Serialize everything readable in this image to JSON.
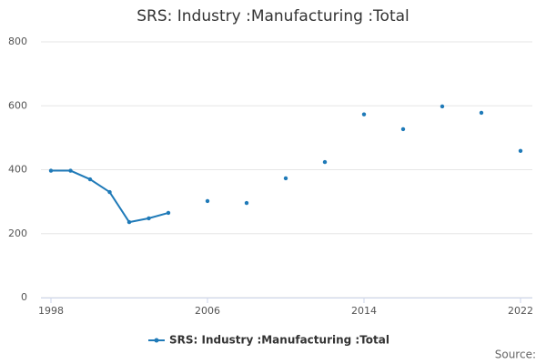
{
  "chart_data": {
    "type": "line",
    "title": "SRS: Industry :Manufacturing :Total",
    "x": [
      1998,
      1999,
      2000,
      2001,
      2002,
      2003,
      2004,
      2005,
      2006,
      2007,
      2008,
      2009,
      2010,
      2011,
      2012,
      2013,
      2014,
      2015,
      2016,
      2017,
      2018,
      2019,
      2020,
      2021,
      2022
    ],
    "series": [
      {
        "name": "SRS: Industry :Manufacturing :Total",
        "color": "#1f7ab8",
        "values": [
          397,
          397,
          370,
          330,
          236,
          248,
          265,
          null,
          302,
          null,
          296,
          null,
          373,
          null,
          424,
          null,
          573,
          null,
          527,
          null,
          598,
          null,
          578,
          null,
          459
        ]
      }
    ],
    "xlim": [
      1998,
      2022
    ],
    "xticks": [
      1998,
      2006,
      2014,
      2022
    ],
    "ylim": [
      0,
      800
    ],
    "yticks": [
      0,
      200,
      400,
      600,
      800
    ],
    "grid": true,
    "legend": "bottom",
    "source": "Source:"
  }
}
